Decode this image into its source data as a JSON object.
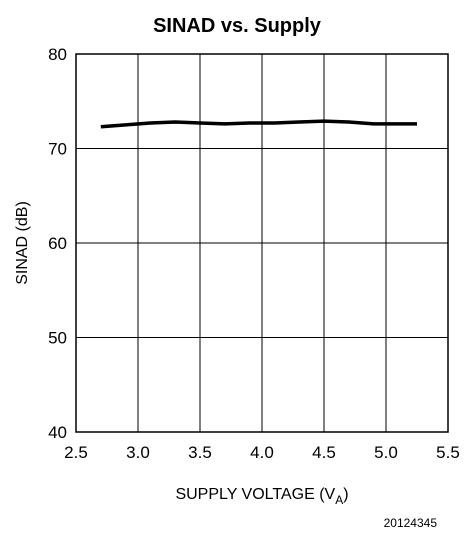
{
  "chart_data": {
    "type": "line",
    "title": "SINAD vs. Supply",
    "xlabel": "SUPPLY VOLTAGE (V",
    "xlabel_sub": "A",
    "xlabel_close": ")",
    "ylabel": "SINAD (dB)",
    "xlim": [
      2.5,
      5.5
    ],
    "ylim": [
      40,
      80
    ],
    "xticks": [
      2.5,
      3.0,
      3.5,
      4.0,
      4.5,
      5.0,
      5.5
    ],
    "xtick_labels": [
      "2.5",
      "3.0",
      "3.5",
      "4.0",
      "4.5",
      "5.0",
      "5.5"
    ],
    "yticks": [
      40,
      50,
      60,
      70,
      80
    ],
    "ytick_labels": [
      "40",
      "50",
      "60",
      "70",
      "80"
    ],
    "grid": true,
    "line_color": "#000000",
    "series": [
      {
        "x": [
          2.7,
          2.9,
          3.1,
          3.3,
          3.5,
          3.7,
          3.9,
          4.1,
          4.3,
          4.5,
          4.7,
          4.9,
          5.1,
          5.25
        ],
        "y": [
          72.3,
          72.5,
          72.7,
          72.8,
          72.7,
          72.6,
          72.7,
          72.7,
          72.8,
          72.9,
          72.8,
          72.6,
          72.6,
          72.6
        ]
      }
    ]
  },
  "figure_code": "20124345"
}
